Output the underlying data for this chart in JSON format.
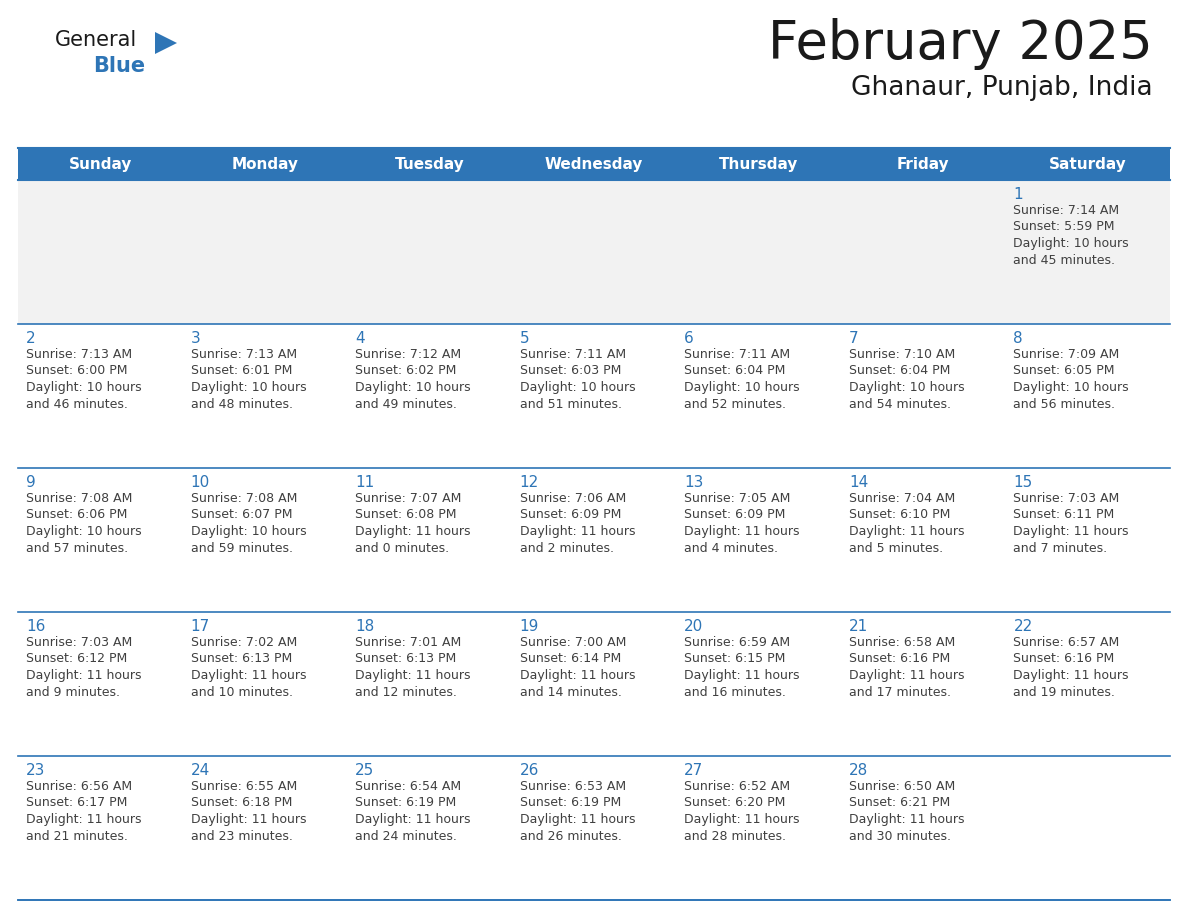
{
  "title": "February 2025",
  "subtitle": "Ghanaur, Punjab, India",
  "header_bg_color": "#2E75B6",
  "header_text_color": "#FFFFFF",
  "cell_bg_color": "#FFFFFF",
  "first_row_bg_color": "#F2F2F2",
  "grid_line_color": "#2E75B6",
  "day_number_color": "#2E75B6",
  "cell_text_color": "#404040",
  "background_color": "#FFFFFF",
  "title_color": "#1a1a1a",
  "subtitle_color": "#1a1a1a",
  "weekdays": [
    "Sunday",
    "Monday",
    "Tuesday",
    "Wednesday",
    "Thursday",
    "Friday",
    "Saturday"
  ],
  "weeks": [
    [
      {
        "day": 0,
        "lines": []
      },
      {
        "day": 0,
        "lines": []
      },
      {
        "day": 0,
        "lines": []
      },
      {
        "day": 0,
        "lines": []
      },
      {
        "day": 0,
        "lines": []
      },
      {
        "day": 0,
        "lines": []
      },
      {
        "day": 1,
        "lines": [
          "Sunrise: 7:14 AM",
          "Sunset: 5:59 PM",
          "Daylight: 10 hours",
          "and 45 minutes."
        ]
      }
    ],
    [
      {
        "day": 2,
        "lines": [
          "Sunrise: 7:13 AM",
          "Sunset: 6:00 PM",
          "Daylight: 10 hours",
          "and 46 minutes."
        ]
      },
      {
        "day": 3,
        "lines": [
          "Sunrise: 7:13 AM",
          "Sunset: 6:01 PM",
          "Daylight: 10 hours",
          "and 48 minutes."
        ]
      },
      {
        "day": 4,
        "lines": [
          "Sunrise: 7:12 AM",
          "Sunset: 6:02 PM",
          "Daylight: 10 hours",
          "and 49 minutes."
        ]
      },
      {
        "day": 5,
        "lines": [
          "Sunrise: 7:11 AM",
          "Sunset: 6:03 PM",
          "Daylight: 10 hours",
          "and 51 minutes."
        ]
      },
      {
        "day": 6,
        "lines": [
          "Sunrise: 7:11 AM",
          "Sunset: 6:04 PM",
          "Daylight: 10 hours",
          "and 52 minutes."
        ]
      },
      {
        "day": 7,
        "lines": [
          "Sunrise: 7:10 AM",
          "Sunset: 6:04 PM",
          "Daylight: 10 hours",
          "and 54 minutes."
        ]
      },
      {
        "day": 8,
        "lines": [
          "Sunrise: 7:09 AM",
          "Sunset: 6:05 PM",
          "Daylight: 10 hours",
          "and 56 minutes."
        ]
      }
    ],
    [
      {
        "day": 9,
        "lines": [
          "Sunrise: 7:08 AM",
          "Sunset: 6:06 PM",
          "Daylight: 10 hours",
          "and 57 minutes."
        ]
      },
      {
        "day": 10,
        "lines": [
          "Sunrise: 7:08 AM",
          "Sunset: 6:07 PM",
          "Daylight: 10 hours",
          "and 59 minutes."
        ]
      },
      {
        "day": 11,
        "lines": [
          "Sunrise: 7:07 AM",
          "Sunset: 6:08 PM",
          "Daylight: 11 hours",
          "and 0 minutes."
        ]
      },
      {
        "day": 12,
        "lines": [
          "Sunrise: 7:06 AM",
          "Sunset: 6:09 PM",
          "Daylight: 11 hours",
          "and 2 minutes."
        ]
      },
      {
        "day": 13,
        "lines": [
          "Sunrise: 7:05 AM",
          "Sunset: 6:09 PM",
          "Daylight: 11 hours",
          "and 4 minutes."
        ]
      },
      {
        "day": 14,
        "lines": [
          "Sunrise: 7:04 AM",
          "Sunset: 6:10 PM",
          "Daylight: 11 hours",
          "and 5 minutes."
        ]
      },
      {
        "day": 15,
        "lines": [
          "Sunrise: 7:03 AM",
          "Sunset: 6:11 PM",
          "Daylight: 11 hours",
          "and 7 minutes."
        ]
      }
    ],
    [
      {
        "day": 16,
        "lines": [
          "Sunrise: 7:03 AM",
          "Sunset: 6:12 PM",
          "Daylight: 11 hours",
          "and 9 minutes."
        ]
      },
      {
        "day": 17,
        "lines": [
          "Sunrise: 7:02 AM",
          "Sunset: 6:13 PM",
          "Daylight: 11 hours",
          "and 10 minutes."
        ]
      },
      {
        "day": 18,
        "lines": [
          "Sunrise: 7:01 AM",
          "Sunset: 6:13 PM",
          "Daylight: 11 hours",
          "and 12 minutes."
        ]
      },
      {
        "day": 19,
        "lines": [
          "Sunrise: 7:00 AM",
          "Sunset: 6:14 PM",
          "Daylight: 11 hours",
          "and 14 minutes."
        ]
      },
      {
        "day": 20,
        "lines": [
          "Sunrise: 6:59 AM",
          "Sunset: 6:15 PM",
          "Daylight: 11 hours",
          "and 16 minutes."
        ]
      },
      {
        "day": 21,
        "lines": [
          "Sunrise: 6:58 AM",
          "Sunset: 6:16 PM",
          "Daylight: 11 hours",
          "and 17 minutes."
        ]
      },
      {
        "day": 22,
        "lines": [
          "Sunrise: 6:57 AM",
          "Sunset: 6:16 PM",
          "Daylight: 11 hours",
          "and 19 minutes."
        ]
      }
    ],
    [
      {
        "day": 23,
        "lines": [
          "Sunrise: 6:56 AM",
          "Sunset: 6:17 PM",
          "Daylight: 11 hours",
          "and 21 minutes."
        ]
      },
      {
        "day": 24,
        "lines": [
          "Sunrise: 6:55 AM",
          "Sunset: 6:18 PM",
          "Daylight: 11 hours",
          "and 23 minutes."
        ]
      },
      {
        "day": 25,
        "lines": [
          "Sunrise: 6:54 AM",
          "Sunset: 6:19 PM",
          "Daylight: 11 hours",
          "and 24 minutes."
        ]
      },
      {
        "day": 26,
        "lines": [
          "Sunrise: 6:53 AM",
          "Sunset: 6:19 PM",
          "Daylight: 11 hours",
          "and 26 minutes."
        ]
      },
      {
        "day": 27,
        "lines": [
          "Sunrise: 6:52 AM",
          "Sunset: 6:20 PM",
          "Daylight: 11 hours",
          "and 28 minutes."
        ]
      },
      {
        "day": 28,
        "lines": [
          "Sunrise: 6:50 AM",
          "Sunset: 6:21 PM",
          "Daylight: 11 hours",
          "and 30 minutes."
        ]
      },
      {
        "day": 0,
        "lines": []
      }
    ]
  ],
  "logo_text_general": "General",
  "logo_text_blue": "Blue",
  "logo_triangle_color": "#2E75B6"
}
